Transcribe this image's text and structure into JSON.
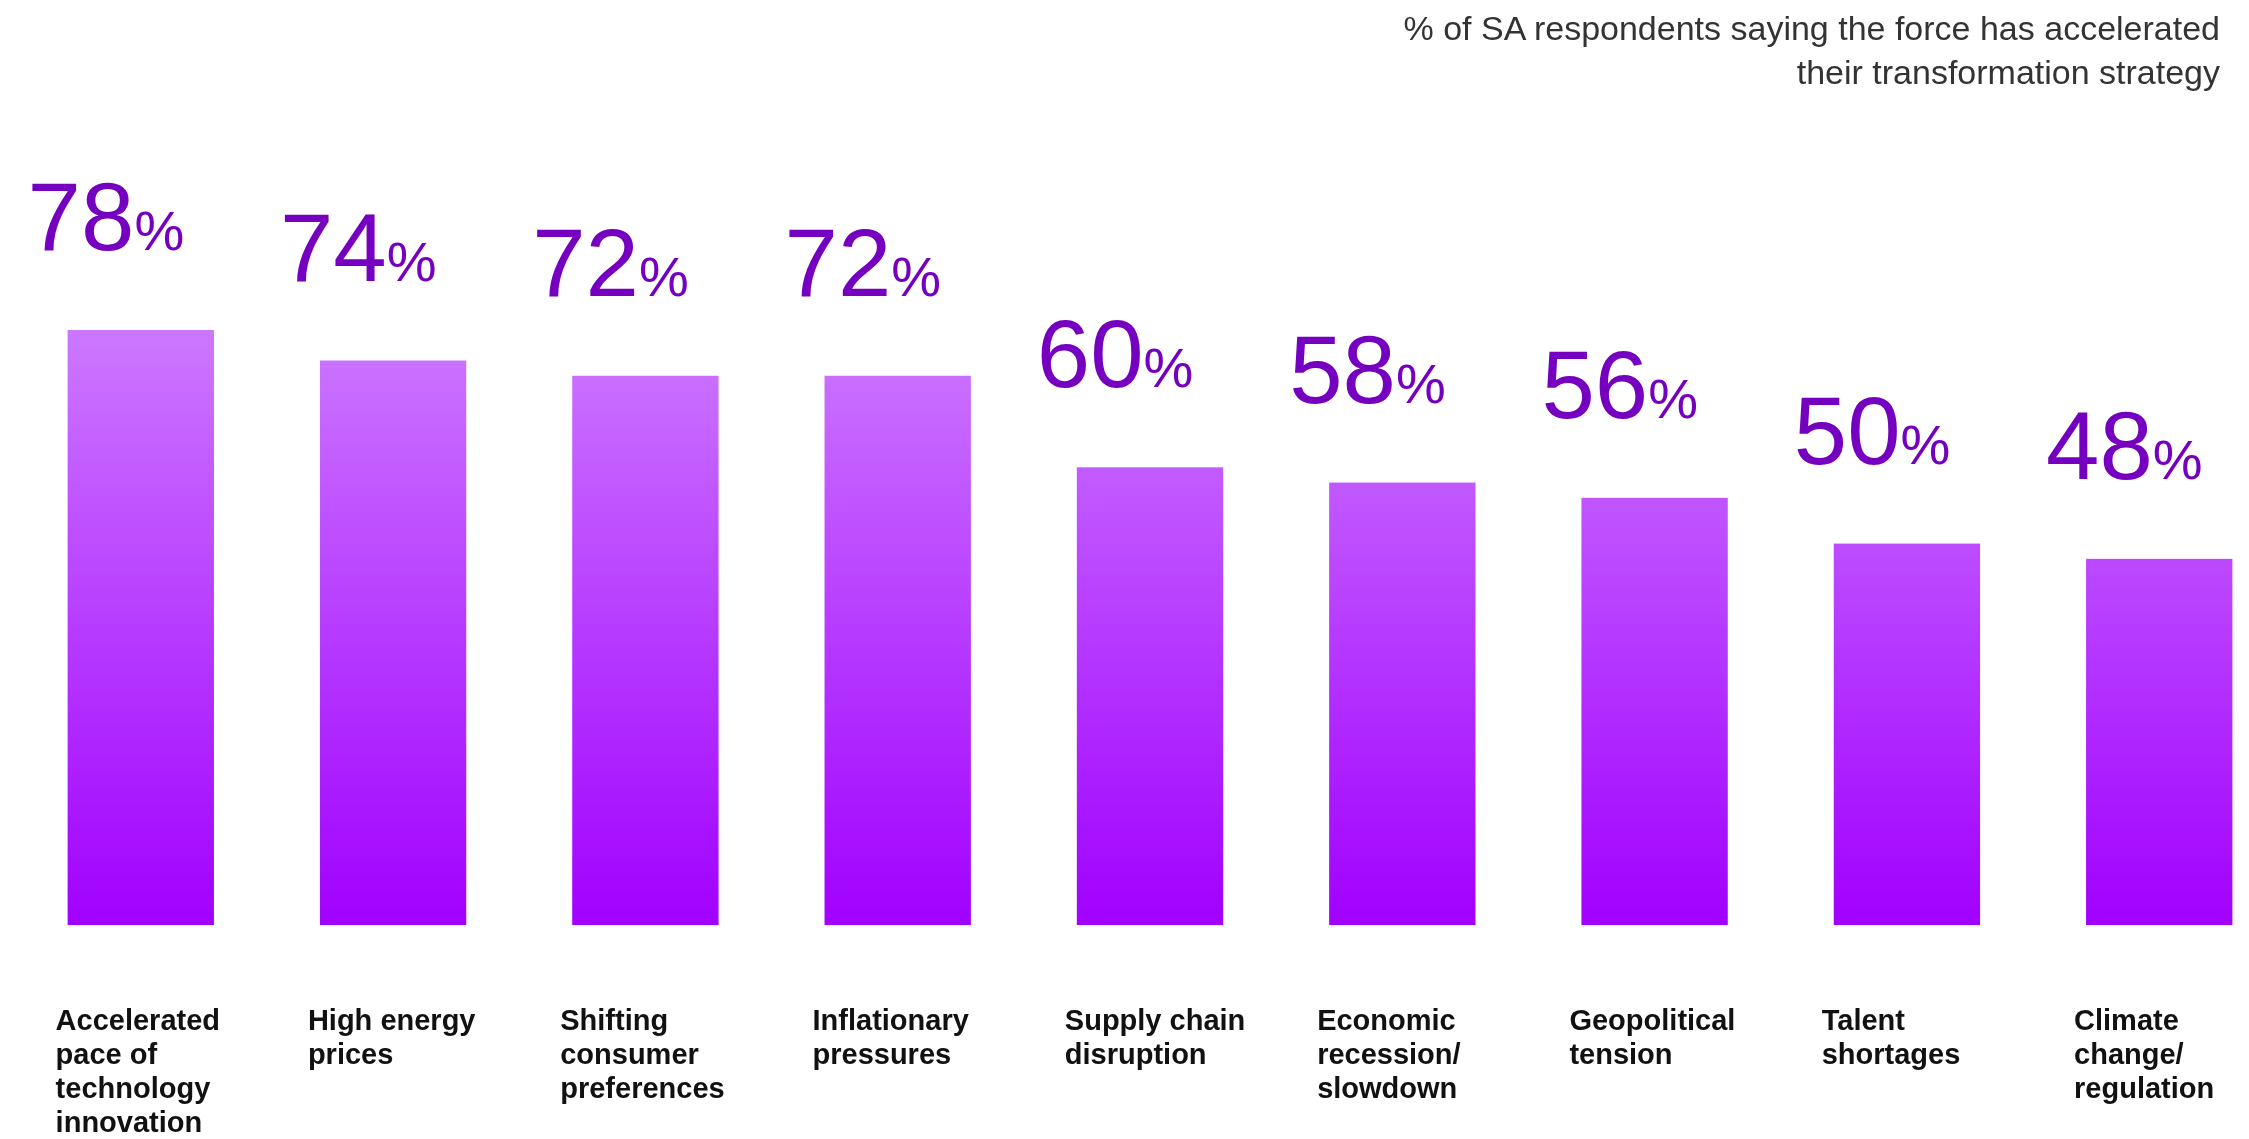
{
  "chart_data": {
    "type": "bar",
    "title": "% of SA respondents saying the force has accelerated their transformation strategy",
    "categories": [
      "Accelerated pace of technology innovation",
      "High energy prices",
      "Shifting consumer preferences",
      "Inflationary pressures",
      "Supply chain disruption",
      "Economic recession/ slowdown",
      "Geopolitical tension",
      "Talent shortages",
      "Climate change/ regulation"
    ],
    "values": [
      78,
      74,
      72,
      72,
      60,
      58,
      56,
      50,
      48
    ],
    "value_labels": [
      "78%",
      "74%",
      "72%",
      "72%",
      "60%",
      "58%",
      "56%",
      "50%",
      "48%"
    ],
    "color": "#a100ff",
    "tick_labels": "x"
  }
}
